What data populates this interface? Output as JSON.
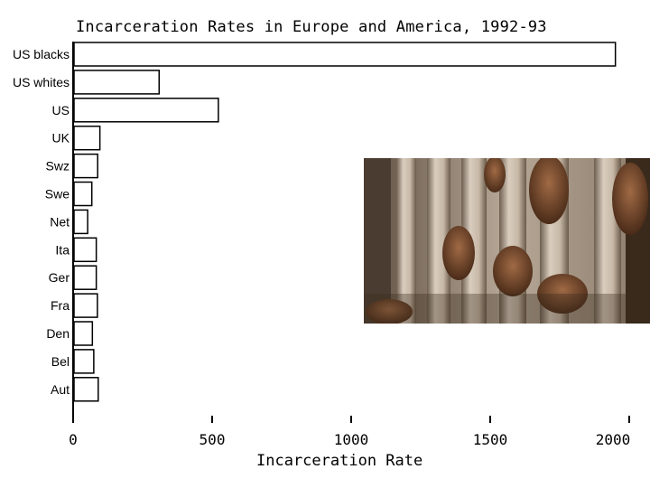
{
  "chart_data": {
    "type": "bar",
    "orientation": "horizontal",
    "title": "Incarceration Rates in Europe and America, 1992-93",
    "xlabel": "Incarceration Rate",
    "ylabel": "",
    "xlim": [
      0,
      2000
    ],
    "xticks": [
      0,
      500,
      1000,
      1500,
      2000
    ],
    "xtick_labels": [
      "0",
      "500",
      "1000",
      "1500",
      "2000"
    ],
    "grid": false,
    "legend": "none",
    "categories": [
      "US blacks",
      "US whites",
      "US",
      "UK",
      "Swz",
      "Swe",
      "Net",
      "Ita",
      "Ger",
      "Fra",
      "Den",
      "Bel",
      "Aut"
    ],
    "values": [
      1947,
      306,
      519,
      93,
      85,
      64,
      49,
      80,
      80,
      84,
      66,
      71,
      87
    ],
    "bar_fill": "#ffffff",
    "bar_stroke": "#000000"
  },
  "photo": {
    "description_icon": "prison-bars-hands-photo"
  }
}
